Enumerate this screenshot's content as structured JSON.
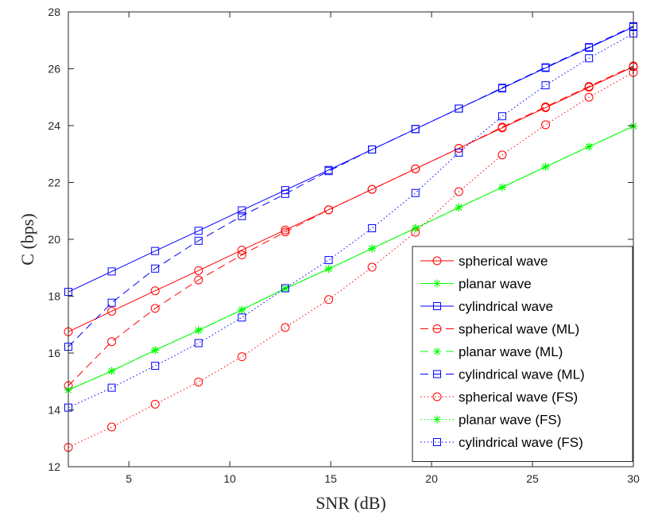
{
  "chart_data": {
    "type": "line",
    "title": "",
    "xlabel": "SNR (dB)",
    "ylabel": "C (bps)",
    "xlim": [
      2,
      30
    ],
    "ylim": [
      12,
      28
    ],
    "xticks": [
      5,
      10,
      15,
      20,
      25,
      30
    ],
    "yticks": [
      12,
      14,
      16,
      18,
      20,
      22,
      24,
      26,
      28
    ],
    "grid": false,
    "legend_position": "bottom-right",
    "x": [
      2,
      4.15,
      6.3,
      8.45,
      10.6,
      12.75,
      14.9,
      17.05,
      19.2,
      21.35,
      23.5,
      25.65,
      27.8,
      30
    ],
    "series": [
      {
        "name": "spherical wave",
        "color": "#ff0000",
        "linestyle": "solid",
        "marker": "circle",
        "values": [
          16.75,
          17.47,
          18.19,
          18.9,
          19.62,
          20.33,
          21.04,
          21.76,
          22.48,
          23.2,
          23.92,
          24.63,
          25.35,
          26.07
        ]
      },
      {
        "name": "planar wave",
        "color": "#00ff00",
        "linestyle": "solid",
        "marker": "star",
        "values": [
          14.7,
          15.37,
          16.1,
          16.8,
          17.52,
          18.27,
          18.96,
          19.68,
          20.39,
          21.12,
          21.83,
          22.55,
          23.26,
          23.98
        ]
      },
      {
        "name": "cylindrical wave",
        "color": "#0000ff",
        "linestyle": "solid",
        "marker": "square",
        "values": [
          18.15,
          18.87,
          19.59,
          20.3,
          21.02,
          21.73,
          22.44,
          23.16,
          23.88,
          24.6,
          25.31,
          26.03,
          26.74,
          27.47
        ]
      },
      {
        "name": "spherical wave (ML)",
        "color": "#ff0000",
        "linestyle": "dashed",
        "marker": "circle",
        "values": [
          14.85,
          16.4,
          17.57,
          18.57,
          19.45,
          20.26,
          21.04,
          21.76,
          22.48,
          23.2,
          23.95,
          24.66,
          25.38,
          26.1
        ]
      },
      {
        "name": "planar wave (ML)",
        "color": "#00ff00",
        "linestyle": "dashed",
        "marker": "star",
        "values": [
          14.7,
          15.37,
          16.1,
          16.8,
          17.52,
          18.27,
          18.96,
          19.68,
          20.39,
          21.12,
          21.83,
          22.55,
          23.26,
          23.98
        ]
      },
      {
        "name": "cylindrical wave (ML)",
        "color": "#0000ff",
        "linestyle": "dashed",
        "marker": "square",
        "values": [
          16.22,
          17.77,
          18.97,
          19.95,
          20.82,
          21.6,
          22.4,
          23.16,
          23.88,
          24.6,
          25.33,
          26.05,
          26.76,
          27.5
        ]
      },
      {
        "name": "spherical wave (FS)",
        "color": "#ff0000",
        "linestyle": "dotted",
        "marker": "circle",
        "values": [
          12.68,
          13.4,
          14.2,
          14.98,
          15.87,
          16.9,
          17.88,
          19.02,
          20.25,
          21.68,
          22.97,
          24.03,
          25.0,
          25.87
        ]
      },
      {
        "name": "planar wave (FS)",
        "color": "#00ff00",
        "linestyle": "dotted",
        "marker": "star",
        "values": [
          14.7,
          15.37,
          16.1,
          16.8,
          17.52,
          18.27,
          18.96,
          19.68,
          20.39,
          21.12,
          21.83,
          22.55,
          23.26,
          23.98
        ]
      },
      {
        "name": "cylindrical wave (FS)",
        "color": "#0000ff",
        "linestyle": "dotted",
        "marker": "square",
        "values": [
          14.08,
          14.78,
          15.55,
          16.35,
          17.25,
          18.28,
          19.27,
          20.39,
          21.63,
          23.05,
          24.33,
          25.42,
          26.37,
          27.24
        ]
      }
    ]
  }
}
